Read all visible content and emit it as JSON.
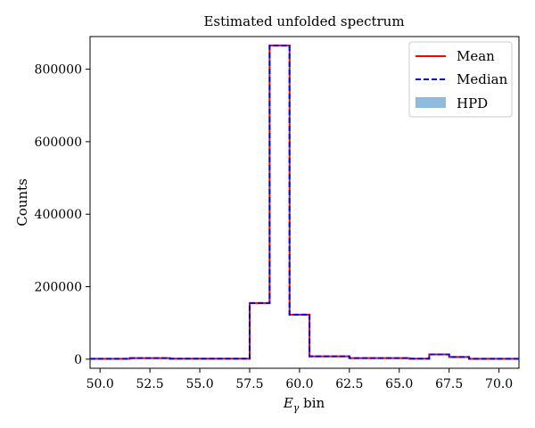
{
  "chart_data": {
    "type": "line",
    "title": "Estimated unfolded spectrum",
    "xlabel": "E",
    "xlabel_sub": "γ",
    "xlabel_suffix": " bin",
    "ylabel": "Counts",
    "xlim": [
      49.5,
      71.0
    ],
    "ylim": [
      -25000,
      890000
    ],
    "xticks": [
      50.0,
      52.5,
      55.0,
      57.5,
      60.0,
      62.5,
      65.0,
      67.5,
      70.0
    ],
    "xtick_labels": [
      "50.0",
      "52.5",
      "55.0",
      "57.5",
      "60.0",
      "62.5",
      "65.0",
      "67.5",
      "70.0"
    ],
    "yticks": [
      0,
      200000,
      400000,
      600000,
      800000
    ],
    "ytick_labels": [
      "0",
      "200000",
      "400000",
      "600000",
      "800000"
    ],
    "grid": false,
    "legend_position": "top-right",
    "bin_edges": [
      49.5,
      50.5,
      51.5,
      52.5,
      53.5,
      54.5,
      55.5,
      56.5,
      57.5,
      58.5,
      59.5,
      60.5,
      61.5,
      62.5,
      63.5,
      64.5,
      65.5,
      66.5,
      67.5,
      68.5,
      69.5,
      70.5,
      71.0
    ],
    "series": [
      {
        "name": "Mean",
        "style": "solid",
        "color": "#ff0000",
        "values": [
          1000,
          1000,
          3000,
          3000,
          1500,
          1500,
          1500,
          1500,
          155000,
          865000,
          123000,
          8000,
          8000,
          3000,
          3000,
          3000,
          1500,
          13000,
          6000,
          1000,
          1000,
          1000
        ]
      },
      {
        "name": "Median",
        "style": "dashed",
        "color": "#0000ff",
        "values": [
          1000,
          1000,
          3000,
          3000,
          1500,
          1500,
          1500,
          1500,
          155000,
          865000,
          123000,
          8000,
          8000,
          3000,
          3000,
          3000,
          1500,
          13000,
          6000,
          1000,
          1000,
          1000
        ]
      },
      {
        "name": "HPD",
        "style": "band",
        "color": "#8fbcdc"
      }
    ]
  }
}
